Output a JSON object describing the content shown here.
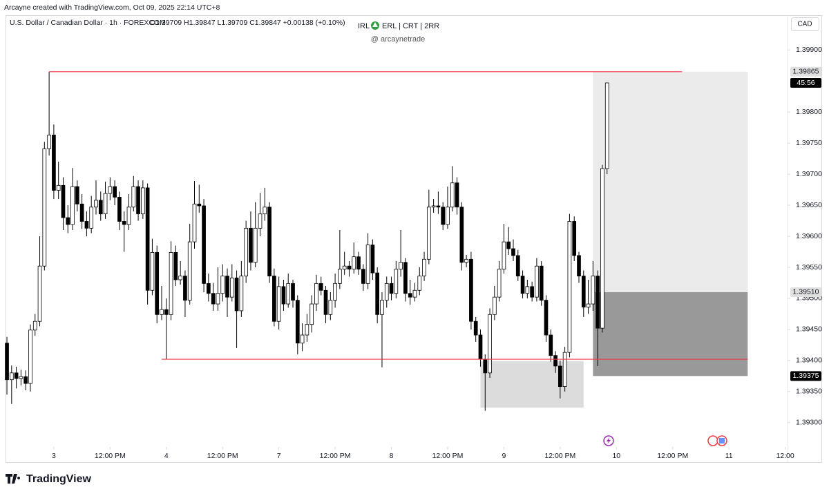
{
  "credit": "Arcayne created with TradingView.com, Oct 09, 2025 22:14 UTC+8",
  "logo": "TradingView",
  "chart_data": {
    "type": "candlestick",
    "symbol": "U.S. Dollar / Canadian Dollar · 1h · FOREXCOM",
    "ohlc_text": "O1.39709 H1.39847 L1.39709 C1.39847 +0.00138 (+0.10%)",
    "title_parts": [
      "IRL",
      "ERL | CRT | 2RR"
    ],
    "subtitle": "@ arcaynetrade",
    "currency": "CAD",
    "up_color": "#ffffff",
    "down_color": "#000000",
    "border_color": "#000000",
    "x": [
      -10,
      -9,
      -8,
      -7,
      -6,
      -5,
      -4,
      -3,
      -2,
      -1,
      0,
      1,
      2,
      3,
      4,
      5,
      6,
      7,
      8,
      9,
      10,
      11,
      12,
      13,
      14,
      15,
      16,
      17,
      18,
      19,
      20,
      21,
      22,
      23,
      24,
      25,
      26,
      27,
      28,
      29,
      30,
      31,
      32,
      33,
      34,
      35,
      36,
      37,
      38,
      39,
      40,
      41,
      42,
      43,
      44,
      45,
      46,
      47,
      48,
      49,
      50,
      51,
      52,
      53,
      54,
      55,
      56,
      57,
      58,
      59,
      60,
      61,
      62,
      63,
      64,
      65,
      66,
      67,
      68,
      69,
      70,
      71,
      72,
      73,
      74,
      75,
      76,
      77,
      78,
      79,
      80,
      81,
      82,
      83,
      84,
      85,
      86,
      87,
      88,
      89,
      90,
      91,
      92,
      93,
      94,
      95,
      96,
      97,
      98,
      99,
      100,
      101,
      102,
      103,
      104,
      105,
      106,
      107,
      108,
      109,
      110,
      111,
      112,
      113,
      114,
      115,
      116,
      117,
      118
    ],
    "open": [
      1.39428,
      1.39369,
      1.3938,
      1.39371,
      1.39374,
      1.39363,
      1.39449,
      1.39463,
      1.39552,
      1.39741,
      1.39763,
      1.39674,
      1.39682,
      1.3963,
      1.39619,
      1.3968,
      1.39652,
      1.39624,
      1.39613,
      1.39647,
      1.39658,
      1.39636,
      1.39669,
      1.3968,
      1.39663,
      1.39624,
      1.39619,
      1.39647,
      1.3968,
      1.39636,
      1.39678,
      1.39513,
      1.39574,
      1.39474,
      1.39482,
      1.39474,
      1.39574,
      1.3953,
      1.39536,
      1.39497,
      1.39591,
      1.39652,
      1.39649,
      1.39524,
      1.39508,
      1.39491,
      1.39508,
      1.39536,
      1.39502,
      1.39533,
      1.3948,
      1.39536,
      1.39613,
      1.39558,
      1.39613,
      1.39636,
      1.39647,
      1.39536,
      1.39463,
      1.39519,
      1.39491,
      1.39524,
      1.39497,
      1.39428,
      1.39441,
      1.39458,
      1.39491,
      1.39524,
      1.39513,
      1.39474,
      1.39497,
      1.39524,
      1.39547,
      1.39552,
      1.39547,
      1.39567,
      1.39547,
      1.39524,
      1.39586,
      1.39541,
      1.39474,
      1.39497,
      1.39524,
      1.39508,
      1.39547,
      1.39558,
      1.39508,
      1.39502,
      1.39513,
      1.39536,
      1.39563,
      1.39647,
      1.39649,
      1.39647,
      1.39619,
      1.39647,
      1.39686,
      1.39647,
      1.39558,
      1.39563,
      1.39463,
      1.39441,
      1.39402,
      1.3938,
      1.39474,
      1.39502,
      1.39547,
      1.39591,
      1.3958,
      1.39569,
      1.39536,
      1.39508,
      1.39519,
      1.39502,
      1.39552,
      1.39497,
      1.39441,
      1.39408,
      1.39391,
      1.39358,
      1.39413,
      1.39624,
      1.39569,
      1.39536,
      1.39486,
      1.39491,
      1.39536,
      1.39452,
      1.39709
    ],
    "high": [
      1.39438,
      1.39392,
      1.3939,
      1.39385,
      1.39384,
      1.39458,
      1.39475,
      1.396,
      1.39752,
      1.39865,
      1.3978,
      1.3972,
      1.39695,
      1.3965,
      1.3971,
      1.3969,
      1.39668,
      1.3964,
      1.39665,
      1.3969,
      1.39672,
      1.39688,
      1.39695,
      1.3969,
      1.39672,
      1.3964,
      1.39668,
      1.39697,
      1.3969,
      1.3969,
      1.39685,
      1.39596,
      1.39585,
      1.3952,
      1.395,
      1.39592,
      1.39585,
      1.3956,
      1.39545,
      1.3962,
      1.39689,
      1.39683,
      1.3966,
      1.3954,
      1.39525,
      1.3955,
      1.39555,
      1.39548,
      1.39555,
      1.39545,
      1.3956,
      1.39625,
      1.3964,
      1.39655,
      1.3967,
      1.39678,
      1.39655,
      1.39548,
      1.39535,
      1.3953,
      1.3954,
      1.3953,
      1.39505,
      1.3946,
      1.39475,
      1.39505,
      1.39538,
      1.39535,
      1.3952,
      1.3951,
      1.3954,
      1.3961,
      1.39575,
      1.3956,
      1.3959,
      1.39575,
      1.39555,
      1.39605,
      1.39595,
      1.3955,
      1.3951,
      1.39535,
      1.39535,
      1.3956,
      1.3961,
      1.39565,
      1.3953,
      1.39525,
      1.3955,
      1.39575,
      1.39675,
      1.3966,
      1.39672,
      1.39655,
      1.3968,
      1.39713,
      1.39695,
      1.39655,
      1.3957,
      1.39575,
      1.3947,
      1.3945,
      1.3941,
      1.39484,
      1.3952,
      1.3956,
      1.3962,
      1.39615,
      1.39595,
      1.39578,
      1.39545,
      1.3953,
      1.39527,
      1.39565,
      1.3956,
      1.39505,
      1.3945,
      1.39415,
      1.394,
      1.39422,
      1.39636,
      1.39632,
      1.39575,
      1.39545,
      1.3953,
      1.3956,
      1.39545,
      1.39715,
      1.39847
    ],
    "low": [
      1.39345,
      1.3933,
      1.39355,
      1.3936,
      1.39352,
      1.3935,
      1.3944,
      1.39455,
      1.39545,
      1.3973,
      1.3966,
      1.3966,
      1.3961,
      1.39605,
      1.3961,
      1.3964,
      1.39612,
      1.396,
      1.39605,
      1.39635,
      1.39625,
      1.39628,
      1.39658,
      1.3965,
      1.3961,
      1.39575,
      1.3961,
      1.3964,
      1.39625,
      1.39628,
      1.3949,
      1.39505,
      1.3946,
      1.39465,
      1.39402,
      1.39465,
      1.3952,
      1.39522,
      1.3947,
      1.3949,
      1.3958,
      1.39638,
      1.3951,
      1.39495,
      1.3948,
      1.3948,
      1.39495,
      1.3947,
      1.39495,
      1.3942,
      1.3947,
      1.39525,
      1.39545,
      1.3955,
      1.396,
      1.39625,
      1.39525,
      1.39455,
      1.3945,
      1.3948,
      1.39485,
      1.39485,
      1.3941,
      1.39415,
      1.3943,
      1.39445,
      1.3948,
      1.39505,
      1.3946,
      1.39465,
      1.39485,
      1.39515,
      1.39538,
      1.39535,
      1.3954,
      1.39538,
      1.39512,
      1.39515,
      1.3953,
      1.3946,
      1.39389,
      1.39485,
      1.39497,
      1.395,
      1.39535,
      1.39495,
      1.3949,
      1.39495,
      1.39505,
      1.39528,
      1.39555,
      1.39638,
      1.39636,
      1.3961,
      1.39612,
      1.3964,
      1.39635,
      1.39545,
      1.3955,
      1.3945,
      1.3943,
      1.3939,
      1.39319,
      1.39372,
      1.39465,
      1.39495,
      1.3954,
      1.3957,
      1.3956,
      1.39528,
      1.395,
      1.395,
      1.39495,
      1.39495,
      1.39488,
      1.3943,
      1.39398,
      1.3938,
      1.39339,
      1.3935,
      1.39405,
      1.3956,
      1.39525,
      1.3947,
      1.39475,
      1.3948,
      1.39391,
      1.39445,
      1.397
    ],
    "close": [
      1.39369,
      1.3938,
      1.39371,
      1.39374,
      1.39363,
      1.39449,
      1.39463,
      1.39552,
      1.39741,
      1.39763,
      1.39674,
      1.39682,
      1.3963,
      1.39619,
      1.3968,
      1.39652,
      1.39624,
      1.39613,
      1.39647,
      1.39658,
      1.39636,
      1.39669,
      1.3968,
      1.39663,
      1.39624,
      1.39619,
      1.39647,
      1.3968,
      1.39636,
      1.39678,
      1.39513,
      1.39574,
      1.39474,
      1.39482,
      1.39474,
      1.39574,
      1.3953,
      1.39536,
      1.39497,
      1.39591,
      1.39652,
      1.39649,
      1.39524,
      1.39508,
      1.39491,
      1.39508,
      1.39536,
      1.39502,
      1.39533,
      1.3948,
      1.39536,
      1.39613,
      1.39558,
      1.39613,
      1.39636,
      1.39647,
      1.39536,
      1.39463,
      1.39519,
      1.39491,
      1.39524,
      1.39497,
      1.39428,
      1.39441,
      1.39458,
      1.39491,
      1.39524,
      1.39513,
      1.39474,
      1.39497,
      1.39524,
      1.39547,
      1.39552,
      1.39547,
      1.39567,
      1.39547,
      1.39524,
      1.39586,
      1.39541,
      1.39474,
      1.39497,
      1.39524,
      1.39508,
      1.39547,
      1.39558,
      1.39508,
      1.39502,
      1.39513,
      1.39536,
      1.39563,
      1.39647,
      1.39649,
      1.39647,
      1.39619,
      1.39647,
      1.39686,
      1.39647,
      1.39558,
      1.39563,
      1.39463,
      1.39441,
      1.39402,
      1.3938,
      1.39474,
      1.39502,
      1.39547,
      1.39591,
      1.3958,
      1.39569,
      1.39536,
      1.39508,
      1.39519,
      1.39502,
      1.39552,
      1.39497,
      1.39441,
      1.39408,
      1.39391,
      1.39358,
      1.39413,
      1.39624,
      1.39569,
      1.39536,
      1.39486,
      1.39491,
      1.39536,
      1.39452,
      1.39709,
      1.39847
    ],
    "xlim": [
      -10.3,
      156.5
    ],
    "xticks": [
      {
        "value": 0,
        "label": "3"
      },
      {
        "value": 12,
        "label": "12:00 PM"
      },
      {
        "value": 24,
        "label": "4"
      },
      {
        "value": 36,
        "label": "12:00 PM"
      },
      {
        "value": 48,
        "label": "7"
      },
      {
        "value": 60,
        "label": "12:00 PM"
      },
      {
        "value": 72,
        "label": "8"
      },
      {
        "value": 84,
        "label": "12:00 PM"
      },
      {
        "value": 96,
        "label": "9"
      },
      {
        "value": 108,
        "label": "12:00 PM"
      },
      {
        "value": 120,
        "label": "10"
      },
      {
        "value": 132,
        "label": "12:00 PM"
      },
      {
        "value": 144,
        "label": "11"
      },
      {
        "value": 156,
        "label": "12:00"
      }
    ],
    "ylim": [
      1.39263,
      1.39956
    ],
    "yticks": [
      {
        "value": 1.393,
        "label": "1.39300"
      },
      {
        "value": 1.3935,
        "label": "1.39350"
      },
      {
        "value": 1.394,
        "label": "1.39400"
      },
      {
        "value": 1.3945,
        "label": "1.39450"
      },
      {
        "value": 1.395,
        "label": "1.39500"
      },
      {
        "value": 1.3955,
        "label": "1.39550"
      },
      {
        "value": 1.396,
        "label": "1.39600"
      },
      {
        "value": 1.3965,
        "label": "1.39650"
      },
      {
        "value": 1.397,
        "label": "1.39700"
      },
      {
        "value": 1.3975,
        "label": "1.39750"
      },
      {
        "value": 1.398,
        "label": "1.39800"
      },
      {
        "value": 1.399,
        "label": "1.39900"
      }
    ],
    "grid": false,
    "hlines": [
      {
        "value": 1.39865,
        "x": [
          -1,
          134
        ],
        "color": "#f23645"
      },
      {
        "value": 1.39402,
        "x": [
          23,
          148
        ],
        "color": "#f23645"
      }
    ],
    "boxes": [
      {
        "x": [
          115,
          148
        ],
        "y": [
          1.39865,
          1.3951
        ],
        "color": "#ebebeb"
      },
      {
        "x": [
          115,
          148
        ],
        "y": [
          1.3951,
          1.39375
        ],
        "color": "#999999"
      },
      {
        "x": [
          91,
          113
        ],
        "y": [
          1.39399,
          1.39324
        ],
        "color": "#dcdcdc"
      }
    ],
    "price_labels": [
      {
        "value": 1.39865,
        "label": "1.39865",
        "color": "#e0e0e0"
      },
      {
        "value": 1.39847,
        "label": "45:56",
        "color": "#000000"
      },
      {
        "value": 1.3951,
        "label": "1.39510",
        "color": "#e0e0e0"
      },
      {
        "value": 1.39375,
        "label": "1.39375",
        "color": "#000000"
      }
    ]
  }
}
